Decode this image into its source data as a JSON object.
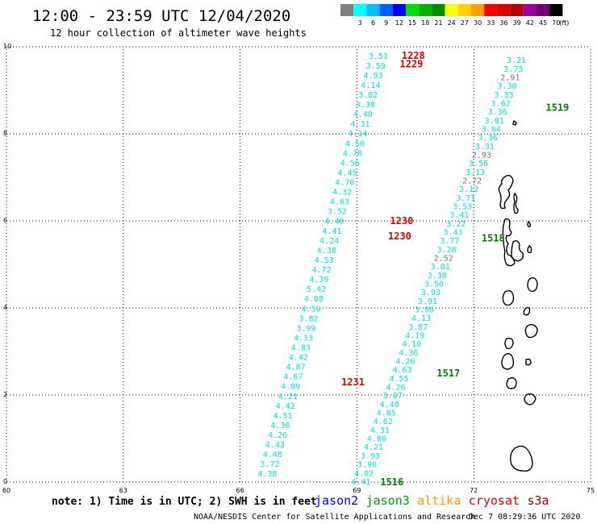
{
  "header": {
    "title": "12:00 - 23:59 UTC 12/04/2020",
    "subtitle": "12 hour collection of altimeter wave heights"
  },
  "colorbar": {
    "unit": "(ft)",
    "bins": [
      {
        "label": "",
        "color": "#808080"
      },
      {
        "label": "3",
        "color": "#00ffff"
      },
      {
        "label": "6",
        "color": "#00bfff"
      },
      {
        "label": "9",
        "color": "#0060ff"
      },
      {
        "label": "12",
        "color": "#0000ff"
      },
      {
        "label": "15",
        "color": "#00e000"
      },
      {
        "label": "18",
        "color": "#00b400"
      },
      {
        "label": "21",
        "color": "#008c00"
      },
      {
        "label": "24",
        "color": "#ffff00"
      },
      {
        "label": "27",
        "color": "#ffd200"
      },
      {
        "label": "30",
        "color": "#ffa000"
      },
      {
        "label": "33",
        "color": "#ff0000"
      },
      {
        "label": "36",
        "color": "#dc0000"
      },
      {
        "label": "39",
        "color": "#b40000"
      },
      {
        "label": "42",
        "color": "#a000a0"
      },
      {
        "label": "45",
        "color": "#700070"
      },
      {
        "label": "70",
        "color": "#000000"
      }
    ]
  },
  "map": {
    "lon_range": [
      60,
      75
    ],
    "lat_range": [
      0,
      10
    ],
    "x_ticks": [
      "60",
      "63",
      "66",
      "69",
      "72",
      "75"
    ],
    "y_ticks": [
      "0",
      "2",
      "4",
      "6",
      "8",
      "10"
    ],
    "gridlines": "dotted"
  },
  "chart_data": {
    "type": "scatter",
    "xlabel": "",
    "ylabel": "",
    "xlim": [
      60,
      75
    ],
    "ylim": [
      0,
      10
    ],
    "track_a": {
      "start": [
        69.55,
        9.8
      ],
      "end": [
        66.7,
        0.2
      ],
      "values": [
        "3.51",
        "3.59",
        "4.93",
        "4.14",
        "3.82",
        "4.30",
        "4.40",
        "4.31",
        "4.14",
        "4.50",
        "4.78",
        "4.56",
        "4.45",
        "4.70",
        "4.32",
        "4.63",
        "3.52",
        "4.40",
        "4.41",
        "4.24",
        "4.38",
        "4.53",
        "4.72",
        "4.39",
        "5.42",
        "4.08",
        "4.59",
        "3.82",
        "3.99",
        "4.13",
        "4.83",
        "4.42",
        "4.87",
        "4.67",
        "4.89",
        "4.21",
        "4.42",
        "4.51",
        "4.30",
        "4.26",
        "4.43",
        "4.48",
        "3.72",
        "4.38"
      ],
      "colors": [
        "#00e0e0",
        "#00e0e0",
        "#00e0e0",
        "#00e0e0",
        "#00e0e0",
        "#00e0e0",
        "#00e0e0",
        "#00e0e0",
        "#00e0e0",
        "#00e0e0",
        "#00e0e0",
        "#00e0e0",
        "#00e0e0",
        "#00e0e0",
        "#00e0e0",
        "#00e0e0",
        "#00e0e0",
        "#00e0e0",
        "#00e0e0",
        "#00e0e0",
        "#00e0e0",
        "#00e0e0",
        "#00e0e0",
        "#00e0e0",
        "#00e0e0",
        "#00e0e0",
        "#00e0e0",
        "#00e0e0",
        "#00e0e0",
        "#00e0e0",
        "#00e0e0",
        "#00e0e0",
        "#00e0e0",
        "#00e0e0",
        "#00e0e0",
        "#00e0e0",
        "#00e0e0",
        "#00e0e0",
        "#00e0e0",
        "#00e0e0",
        "#00e0e0",
        "#00e0e0",
        "#00e0e0",
        "#00e0e0"
      ]
    },
    "track_b": {
      "start": [
        73.1,
        9.7
      ],
      "end": [
        69.1,
        0.02
      ],
      "values": [
        "3.21",
        "3.73",
        "2.91",
        "3.30",
        "3.33",
        "3.62",
        "3.36",
        "3.01",
        "3.04",
        "3.36",
        "3.31",
        "2.93",
        "3.56",
        "3.13",
        "2.72",
        "3.12",
        "3.71",
        "3.53",
        "3.41",
        "3.22",
        "3.43",
        "3.77",
        "3.28",
        "2.52",
        "3.81",
        "3.38",
        "3.50",
        "3.93",
        "3.91",
        "3.98",
        "4.13",
        "3.87",
        "4.19",
        "4.10",
        "4.36",
        "4.26",
        "4.63",
        "4.55",
        "4.26",
        "3.87",
        "4.48",
        "4.85",
        "4.62",
        "4.31",
        "4.80",
        "4.21",
        "3.93",
        "3.90",
        "4.02",
        "4.41"
      ],
      "colors": [
        "#00e0e0",
        "#00e0e0",
        "#707070",
        "#00e0e0",
        "#00e0e0",
        "#00e0e0",
        "#00e0e0",
        "#00e0e0",
        "#00e0e0",
        "#00e0e0",
        "#00e0e0",
        "#707070",
        "#00e0e0",
        "#00e0e0",
        "#707070",
        "#00e0e0",
        "#00e0e0",
        "#00e0e0",
        "#00e0e0",
        "#00e0e0",
        "#00e0e0",
        "#00e0e0",
        "#00e0e0",
        "#707070",
        "#00e0e0",
        "#00e0e0",
        "#00e0e0",
        "#00e0e0",
        "#00e0e0",
        "#00e0e0",
        "#00e0e0",
        "#00e0e0",
        "#00e0e0",
        "#00e0e0",
        "#00e0e0",
        "#00e0e0",
        "#00e0e0",
        "#00e0e0",
        "#00e0e0",
        "#00e0e0",
        "#00e0e0",
        "#00e0e0",
        "#00e0e0",
        "#00e0e0",
        "#00e0e0",
        "#00e0e0",
        "#00e0e0",
        "#00e0e0",
        "#00e0e0",
        "#00e0e0"
      ]
    },
    "time_labels": [
      {
        "text": "1228",
        "lon": 70.15,
        "lat": 9.8,
        "color": "#e00000"
      },
      {
        "text": "1229",
        "lon": 70.1,
        "lat": 9.6,
        "color": "#e00000"
      },
      {
        "text": "1230",
        "lon": 69.85,
        "lat": 6.0,
        "color": "#e00000"
      },
      {
        "text": "1230",
        "lon": 69.8,
        "lat": 5.65,
        "color": "#e00000"
      },
      {
        "text": "1231",
        "lon": 68.6,
        "lat": 2.3,
        "color": "#e00000"
      },
      {
        "text": "1519",
        "lon": 73.85,
        "lat": 8.6,
        "color": "#008000"
      },
      {
        "text": "1518",
        "lon": 72.2,
        "lat": 5.6,
        "color": "#008000"
      },
      {
        "text": "1517",
        "lon": 71.05,
        "lat": 2.5,
        "color": "#008000"
      },
      {
        "text": "1516",
        "lon": 69.6,
        "lat": 0.0,
        "color": "#008000"
      }
    ]
  },
  "footer": {
    "note": "note: 1) Time is in UTC; 2) SWH is in feet",
    "satellites": [
      {
        "name": "jason2",
        "color": "#0000e0"
      },
      {
        "name": "jason3",
        "color": "#00a000"
      },
      {
        "name": "altika",
        "color": "#ff9900"
      },
      {
        "name": "cryosat",
        "color": "#e00000"
      },
      {
        "name": "s3a",
        "color": "#900000"
      }
    ],
    "credit": "NOAA/NESDIS Center for Satellite Applications and Research",
    "timestamp": "Dec  7 08:29:36 UTC 2020"
  }
}
